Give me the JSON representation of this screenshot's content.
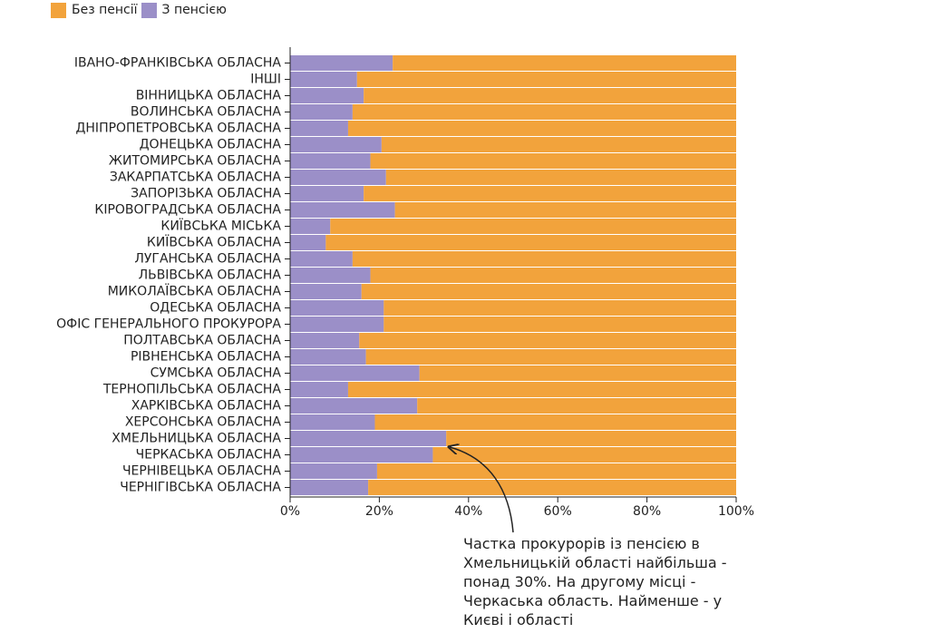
{
  "legend": {
    "no_pension": "Без пенсії",
    "with_pension": "З пенсією"
  },
  "colors": {
    "no_pension": "#f2a33c",
    "with_pension": "#9b8fc8",
    "axis": "#222222"
  },
  "annotation": "Частка прокурорів із пенсією в Хмельницькій області найбільша - понад 30%. На другому місці - Черкаська область. Найменше - у Києві і області",
  "chart_data": {
    "type": "bar",
    "orientation": "horizontal",
    "stacked": "percent",
    "categories": [
      "ІВАНО-ФРАНКІВСЬКА ОБЛАСНА",
      "ІНШІ",
      "ВІННИЦЬКА ОБЛАСНА",
      "ВОЛИНСЬКА ОБЛАСНА",
      "ДНІПРОПЕТРОВСЬКА ОБЛАСНА",
      "ДОНЕЦЬКА ОБЛАСНА",
      "ЖИТОМИРСЬКА ОБЛАСНА",
      "ЗАКАРПАТСЬКА ОБЛАСНА",
      "ЗАПОРІЗЬКА ОБЛАСНА",
      "КІРОВОГРАДСЬКА ОБЛАСНА",
      "КИЇВСЬКА МІСЬКА",
      "КИЇВСЬКА ОБЛАСНА",
      "ЛУГАНСЬКА ОБЛАСНА",
      "ЛЬВІВСЬКА ОБЛАСНА",
      "МИКОЛАЇВСЬКА ОБЛАСНА",
      "ОДЕСЬКА ОБЛАСНА",
      "ОФІС ГЕНЕРАЛЬНОГО ПРОКУРОРА",
      "ПОЛТАВСЬКА ОБЛАСНА",
      "РІВНЕНСЬКА ОБЛАСНА",
      "СУМСЬКА ОБЛАСНА",
      "ТЕРНОПІЛЬСЬКА ОБЛАСНА",
      "ХАРКІВСЬКА ОБЛАСНА",
      "ХЕРСОНСЬКА ОБЛАСНА",
      "ХМЕЛЬНИЦЬКА ОБЛАСНА",
      "ЧЕРКАСЬКА ОБЛАСНА",
      "ЧЕРНІВЕЦЬКА ОБЛАСНА",
      "ЧЕРНІГІВСЬКА ОБЛАСНА"
    ],
    "series": [
      {
        "name": "З пенсією",
        "values": [
          23,
          15,
          16.5,
          14,
          13,
          20.5,
          18,
          21.5,
          16.5,
          23.5,
          9,
          8,
          14,
          18,
          16,
          21,
          21,
          15.5,
          17,
          29,
          13,
          28.5,
          19,
          35,
          32,
          19.5,
          17.5
        ]
      },
      {
        "name": "Без пенсії",
        "values": [
          77,
          85,
          83.5,
          86,
          87,
          79.5,
          82,
          78.5,
          83.5,
          76.5,
          91,
          92,
          86,
          82,
          84,
          79,
          79,
          84.5,
          83,
          71,
          87,
          71.5,
          81,
          65,
          68,
          80.5,
          82.5
        ]
      }
    ],
    "x_ticks": [
      "0%",
      "20%",
      "40%",
      "60%",
      "80%",
      "100%"
    ],
    "xlim": [
      0,
      100
    ],
    "xlabel": "",
    "ylabel": "",
    "legend_position": "top-left"
  }
}
